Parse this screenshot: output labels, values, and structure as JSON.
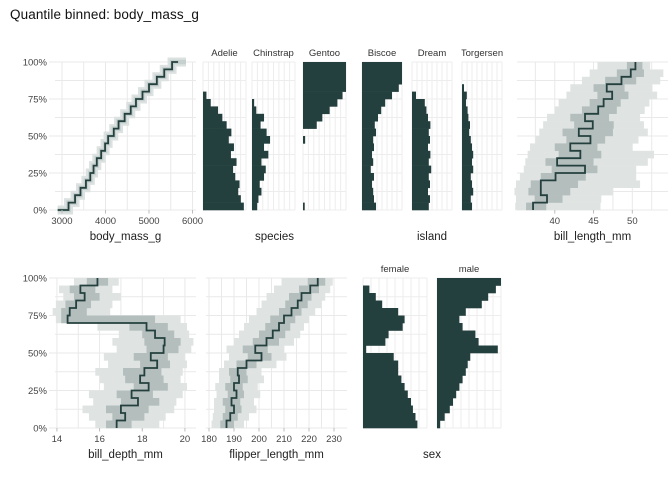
{
  "chart_data": {
    "type": "quantile_binned_matrix",
    "title": "Quantile binned: body_mass_g",
    "palette": {
      "dark": "#24403e",
      "band_mid": "#b3bebd",
      "band_light": "#dfe4e3",
      "ecdf_band_outer": "#dce2e1",
      "ecdf_band_inner": "#c6d0ce",
      "grid": "#e9e9e9",
      "col_grid": "#ededed",
      "tick_mark": "#bcbcbc",
      "tick_text": "#444444",
      "axis_title_text": "#222222",
      "facet_text": "#333333"
    },
    "y_axis": {
      "labels": [
        "100%",
        "75%",
        "50%",
        "25%",
        "0%"
      ],
      "label_pcts": [
        100,
        75,
        50,
        25,
        0
      ],
      "gridlines_pct": [
        0,
        12.5,
        25,
        37.5,
        50,
        62.5,
        75,
        87.5,
        100
      ]
    },
    "bin_count": 20,
    "panels": [
      {
        "id": "body_mass_g",
        "type": "ecdf_step",
        "xlabel": "body_mass_g",
        "xmin": 2839,
        "xmax": 6080,
        "x_ticks": [
          3000,
          4000,
          5000,
          6000
        ],
        "x_tick_labels": [
          "3000",
          "4000",
          "5000",
          "6000"
        ],
        "grid_x": [
          3000,
          3500,
          4000,
          4500,
          5000,
          5500,
          6000
        ],
        "probs_pct": [
          0,
          5,
          10,
          15,
          20,
          25,
          30,
          35,
          40,
          45,
          50,
          55,
          60,
          65,
          70,
          75,
          80,
          85,
          90,
          95,
          100
        ],
        "quantiles": [
          2900,
          3150,
          3300,
          3425,
          3550,
          3650,
          3725,
          3800,
          3900,
          3990,
          4060,
          4190,
          4300,
          4440,
          4580,
          4700,
          4850,
          5000,
          5180,
          5350,
          5530
        ],
        "band_end_x": 5850
      },
      {
        "id": "species",
        "type": "column_bars",
        "xlabel": "species",
        "categories": [
          "Adelie",
          "Chinstrap",
          "Gentoo"
        ],
        "series": [
          {
            "name": "Adelie",
            "values": [
              0.95,
              0.88,
              0.82,
              0.85,
              0.75,
              0.7,
              0.78,
              0.65,
              0.72,
              0.6,
              0.66,
              0.55,
              0.45,
              0.35,
              0.18,
              0.08,
              0,
              0,
              0,
              0
            ]
          },
          {
            "name": "Chinstrap",
            "values": [
              0.12,
              0.15,
              0.22,
              0.18,
              0.28,
              0.32,
              0.22,
              0.38,
              0.28,
              0.42,
              0.34,
              0.2,
              0.28,
              0.1,
              0.05,
              0,
              0,
              0,
              0,
              0
            ]
          },
          {
            "name": "Gentoo",
            "values": [
              0.04,
              0,
              0,
              0,
              0,
              0,
              0,
              0,
              0,
              0.05,
              0,
              0.32,
              0.45,
              0.62,
              0.8,
              0.92,
              1,
              1,
              1,
              1
            ]
          }
        ]
      },
      {
        "id": "island",
        "type": "column_bars",
        "xlabel": "island",
        "categories": [
          "Biscoe",
          "Dream",
          "Torgersen"
        ],
        "series": [
          {
            "name": "Biscoe",
            "values": [
              0.35,
              0.3,
              0.28,
              0.25,
              0.3,
              0.22,
              0.28,
              0.25,
              0.3,
              0.28,
              0.35,
              0.32,
              0.4,
              0.48,
              0.58,
              0.75,
              0.92,
              1,
              1,
              1
            ]
          },
          {
            "name": "Dream",
            "values": [
              0.42,
              0.45,
              0.4,
              0.45,
              0.42,
              0.48,
              0.42,
              0.46,
              0.4,
              0.45,
              0.42,
              0.46,
              0.4,
              0.36,
              0.32,
              0.1,
              0,
              0,
              0,
              0
            ]
          },
          {
            "name": "Torgersen",
            "values": [
              0.25,
              0.22,
              0.28,
              0.25,
              0.22,
              0.28,
              0.25,
              0.28,
              0.25,
              0.22,
              0.18,
              0.2,
              0.16,
              0.14,
              0.1,
              0.12,
              0.05,
              0,
              0,
              0
            ]
          }
        ]
      },
      {
        "id": "bill_length_mm",
        "type": "quantile_band",
        "xlabel": "bill_length_mm",
        "xmin": 35.13,
        "xmax": 54.6,
        "x_ticks": [
          40,
          45,
          50
        ],
        "x_tick_labels": [
          "40",
          "45",
          "50"
        ],
        "grid_x": [
          37.5,
          40,
          42.5,
          45,
          47.5,
          50,
          52.5
        ],
        "lo": [
          34.9,
          35.0,
          34.8,
          35.0,
          35.5,
          36.0,
          36.2,
          36.5,
          36.8,
          37.5,
          38.0,
          38.5,
          39.0,
          40.0,
          40.5,
          41.5,
          42.0,
          43.5,
          44.5,
          45.5
        ],
        "q1": [
          36.3,
          37.4,
          36.6,
          36.9,
          38.2,
          39.6,
          38.8,
          40.5,
          40.0,
          41.5,
          41.0,
          42.5,
          42.0,
          43.5,
          44.5,
          45.5,
          45.0,
          46.5,
          48.0,
          49.3
        ],
        "med": [
          37.2,
          39.0,
          38.2,
          38.2,
          40.1,
          43.9,
          40.3,
          43.3,
          42.0,
          44.6,
          43.1,
          44.9,
          43.9,
          45.6,
          46.3,
          47.4,
          46.7,
          48.6,
          49.8,
          50.4
        ],
        "q3": [
          38.9,
          41.0,
          42.0,
          43.0,
          44.0,
          45.5,
          45.0,
          46.0,
          45.5,
          46.5,
          47.5,
          47.6,
          47.0,
          48.0,
          48.5,
          49.5,
          49.0,
          50.5,
          51.5,
          51.3
        ],
        "hi": [
          45.9,
          46.0,
          47.5,
          51.0,
          50.5,
          50.5,
          52.0,
          52.8,
          50.0,
          50.8,
          52.0,
          51.5,
          51.0,
          51.6,
          52.2,
          53.2,
          52.6,
          53.6,
          54.0,
          52.3
        ]
      },
      {
        "id": "bill_depth_mm",
        "type": "quantile_band",
        "xlabel": "bill_depth_mm",
        "xmin": 13.91,
        "xmax": 20.52,
        "x_ticks": [
          14,
          16,
          18,
          20
        ],
        "x_tick_labels": [
          "14",
          "16",
          "18",
          "20"
        ],
        "grid_x": [
          14,
          15,
          16,
          17,
          18,
          19,
          20
        ],
        "lo": [
          15.8,
          15.5,
          15.2,
          15.7,
          15.5,
          16.2,
          16.0,
          15.8,
          16.4,
          16.2,
          16.8,
          16.6,
          16.9,
          15.9,
          13.95,
          13.8,
          13.95,
          14.3,
          14.1,
          14.8
        ],
        "q1": [
          16.3,
          16.6,
          16.3,
          17.0,
          16.8,
          17.6,
          17.2,
          17.1,
          17.9,
          17.6,
          18.2,
          18.1,
          18.0,
          17.4,
          14.2,
          14.2,
          14.4,
          14.8,
          14.6,
          15.4
        ],
        "med": [
          16.8,
          17.2,
          17.0,
          17.8,
          17.5,
          18.3,
          17.9,
          18.1,
          18.7,
          18.4,
          19.0,
          19.05,
          18.6,
          18.2,
          14.5,
          14.6,
          14.9,
          15.3,
          15.1,
          15.9
        ],
        "q3": [
          17.5,
          18.1,
          18.3,
          18.8,
          18.5,
          19.2,
          19.0,
          18.9,
          19.3,
          19.2,
          19.7,
          19.8,
          19.5,
          19.2,
          18.6,
          15.4,
          15.6,
          16.0,
          15.8,
          16.4
        ],
        "hi": [
          18.8,
          19.1,
          19.5,
          19.6,
          19.9,
          20.1,
          19.8,
          19.9,
          20.1,
          20.0,
          20.3,
          20.4,
          20.2,
          20.1,
          19.8,
          16.5,
          16.6,
          17.0,
          16.6,
          16.9
        ]
      },
      {
        "id": "flipper_length_mm",
        "type": "quantile_band",
        "xlabel": "flipper_length_mm",
        "xmin": 178.8,
        "xmax": 235.2,
        "x_ticks": [
          180,
          190,
          200,
          210,
          220,
          230
        ],
        "x_tick_labels": [
          "180",
          "190",
          "200",
          "210",
          "220",
          "230"
        ],
        "grid_x": [
          180,
          185,
          190,
          195,
          200,
          205,
          210,
          215,
          220,
          225,
          230
        ],
        "lo": [
          181,
          181.5,
          182,
          182,
          183,
          182.5,
          184,
          184,
          186,
          188,
          187,
          190,
          192,
          194,
          196,
          199,
          201,
          203,
          206,
          209
        ],
        "q1": [
          184.5,
          185.5,
          186.5,
          185.5,
          187.5,
          186.5,
          188.5,
          188,
          191,
          195.5,
          193.5,
          197.5,
          200,
          202.5,
          204.5,
          208,
          210.5,
          212,
          216,
          219.5
        ],
        "med": [
          187,
          188.5,
          190,
          189,
          191,
          190,
          192,
          191.5,
          195,
          201,
          198.5,
          203,
          205.5,
          208,
          210,
          213,
          215.5,
          217,
          220.5,
          223.5
        ],
        "q3": [
          190,
          191.5,
          193,
          192.5,
          194,
          193.5,
          195.5,
          195,
          199,
          205,
          203.5,
          208,
          210.5,
          212.5,
          214.5,
          217,
          219.5,
          221,
          224,
          226.5
        ],
        "hi": [
          194,
          196,
          199,
          198,
          200.5,
          199.5,
          202,
          201,
          207,
          211,
          210,
          214,
          216.5,
          218,
          220,
          222.5,
          225,
          226.5,
          228.5,
          229.5
        ]
      },
      {
        "id": "sex",
        "type": "column_bars",
        "xlabel": "sex",
        "categories": [
          "female",
          "male"
        ],
        "series": [
          {
            "name": "female",
            "values": [
              0.85,
              0.82,
              0.78,
              0.75,
              0.7,
              0.65,
              0.6,
              0.55,
              0.55,
              0.48,
              0.05,
              0.35,
              0.4,
              0.62,
              0.65,
              0.55,
              0.3,
              0.2,
              0.1,
              0
            ]
          },
          {
            "name": "male",
            "values": [
              0.05,
              0.12,
              0.2,
              0.25,
              0.3,
              0.35,
              0.4,
              0.45,
              0.48,
              0.52,
              0.95,
              0.65,
              0.6,
              0.4,
              0.35,
              0.45,
              0.7,
              0.8,
              0.92,
              1
            ]
          }
        ]
      }
    ]
  }
}
